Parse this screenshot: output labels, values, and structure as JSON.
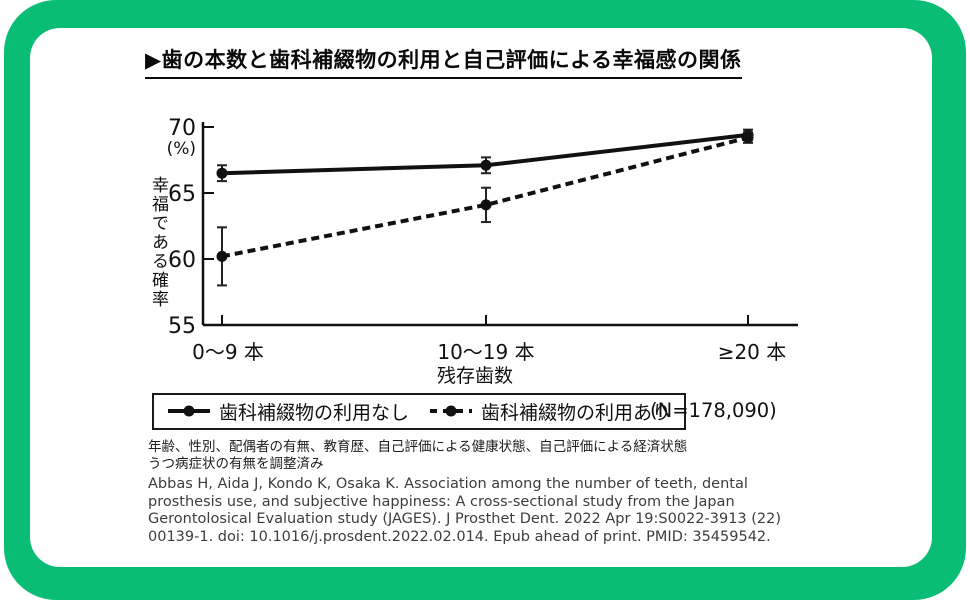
{
  "accent_color": "#0abd74",
  "title": "▶歯の本数と歯科補綴物の利用と自己評価による幸福感の関係",
  "chart_data": {
    "type": "line",
    "title": "歯の本数と歯科補綴物の利用と自己評価による幸福感の関係",
    "categories": [
      "0〜9 本",
      "10〜19 本",
      "≥20 本"
    ],
    "xlabel": "残存歯数",
    "ylabel": "幸福である確率",
    "y_unit_label": "(%)",
    "ylim": [
      55,
      70
    ],
    "yticks": [
      "70",
      "65",
      "60",
      "55"
    ],
    "grid": false,
    "legend_position": "bottom",
    "series": [
      {
        "name": "歯科補綴物の利用なし",
        "style": "solid",
        "values": [
          66.5,
          67.1,
          69.4
        ],
        "err_low": [
          65.9,
          66.5,
          69.0
        ],
        "err_high": [
          67.1,
          67.7,
          69.8
        ]
      },
      {
        "name": "歯科補綴物の利用あり",
        "style": "dashed",
        "values": [
          60.2,
          64.1,
          69.2
        ],
        "err_low": [
          58.0,
          62.8,
          68.8
        ],
        "err_high": [
          62.4,
          65.4,
          69.6
        ]
      }
    ],
    "sample_size": "(N=178,090)"
  },
  "footnotes": [
    "年齢、性別、配偶者の有無、教育歴、自己評価による健康状態、自己評価による経済状態",
    "うつ病症状の有無を調整済み"
  ],
  "citation": [
    "Abbas H, Aida J, Kondo K, Osaka K. Association among the number of teeth, dental",
    "prosthesis use, and subjective happiness: A cross-sectional study from the Japan",
    "Gerontolosical Evaluation study (JAGES). J Prosthet Dent. 2022 Apr 19:S0022-3913 (22)",
    "00139-1. doi: 10.1016/j.prosdent.2022.02.014. Epub ahead of print. PMID: 35459542."
  ]
}
